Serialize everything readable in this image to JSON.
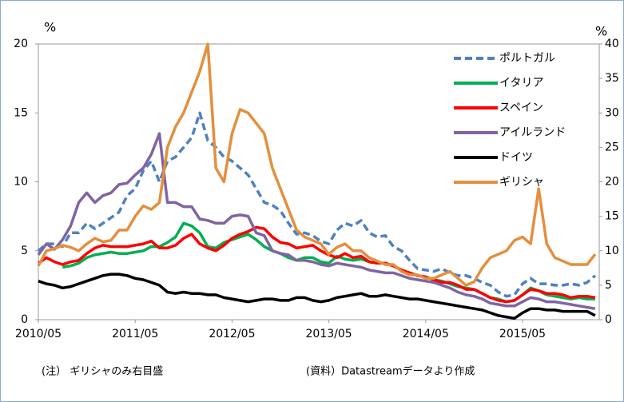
{
  "chart_data": {
    "type": "line",
    "y_label": "%",
    "y2_label": "%",
    "categories": [
      "2010/05",
      null,
      null,
      null,
      null,
      null,
      null,
      null,
      null,
      null,
      null,
      null,
      "2011/05",
      null,
      null,
      null,
      null,
      null,
      null,
      null,
      null,
      null,
      null,
      null,
      "2012/05",
      null,
      null,
      null,
      null,
      null,
      null,
      null,
      null,
      null,
      null,
      null,
      "2013/05",
      null,
      null,
      null,
      null,
      null,
      null,
      null,
      null,
      null,
      null,
      null,
      "2014/05",
      null,
      null,
      null,
      null,
      null,
      null,
      null,
      null,
      null,
      null,
      null,
      "2015/05",
      null,
      null,
      null,
      null,
      null,
      null,
      null,
      null,
      null
    ],
    "ylim": [
      0,
      20
    ],
    "yticks": [
      0,
      5,
      10,
      15,
      20
    ],
    "y2lim": [
      0,
      40
    ],
    "y2ticks": [
      0,
      5,
      10,
      15,
      20,
      25,
      30,
      35,
      40
    ],
    "grid": false,
    "legend": "upper right",
    "series": [
      {
        "name": "ポルトガル",
        "color": "#4f81bd",
        "dash": true,
        "values": [
          5.0,
          5.5,
          5.5,
          5.3,
          6.3,
          6.3,
          7.0,
          6.6,
          7.0,
          7.4,
          7.8,
          9.0,
          9.5,
          10.8,
          11.5,
          10.0,
          11.5,
          11.8,
          12.5,
          13.2,
          15.0,
          13.0,
          12.5,
          11.8,
          11.5,
          11.0,
          10.5,
          9.5,
          8.5,
          8.3,
          7.9,
          7.0,
          6.2,
          6.3,
          6.1,
          5.7,
          5.5,
          6.5,
          7.0,
          6.8,
          7.2,
          6.3,
          6.0,
          6.1,
          5.3,
          5.0,
          4.3,
          3.7,
          3.6,
          3.5,
          3.7,
          3.4,
          3.2,
          3.2,
          3.0,
          2.7,
          2.5,
          2.0,
          1.7,
          1.8,
          2.6,
          3.0,
          2.6,
          2.6,
          2.5,
          2.5,
          2.6,
          2.5,
          2.7,
          3.2
        ]
      },
      {
        "name": "イタリア",
        "color": "#00b050",
        "values": [
          null,
          null,
          null,
          3.8,
          3.9,
          4.1,
          4.5,
          4.7,
          4.8,
          4.9,
          4.8,
          4.8,
          4.9,
          5.0,
          5.3,
          5.3,
          5.6,
          6.0,
          7.0,
          6.8,
          6.3,
          5.3,
          5.2,
          5.6,
          5.8,
          6.0,
          6.2,
          5.8,
          5.3,
          5.0,
          4.8,
          4.5,
          4.3,
          4.5,
          4.5,
          4.2,
          4.1,
          4.6,
          4.4,
          4.3,
          4.4,
          4.2,
          4.1,
          4.1,
          3.9,
          3.6,
          3.4,
          3.2,
          3.1,
          2.9,
          2.8,
          2.6,
          2.4,
          2.3,
          2.2,
          1.9,
          1.6,
          1.5,
          1.3,
          1.4,
          1.8,
          2.3,
          2.1,
          1.8,
          1.7,
          1.6,
          1.5,
          1.6,
          1.5,
          1.5
        ]
      },
      {
        "name": "スペイン",
        "color": "#ff0000",
        "values": [
          4.1,
          4.5,
          4.2,
          4.0,
          4.2,
          4.3,
          4.8,
          5.2,
          5.4,
          5.3,
          5.3,
          5.3,
          5.4,
          5.5,
          5.7,
          5.2,
          5.2,
          5.4,
          5.9,
          6.2,
          5.5,
          5.2,
          5.0,
          5.4,
          5.9,
          6.2,
          6.4,
          6.7,
          6.6,
          6.0,
          5.6,
          5.5,
          5.2,
          5.3,
          5.4,
          5.0,
          4.7,
          4.5,
          4.8,
          4.5,
          4.6,
          4.2,
          4.1,
          4.1,
          3.9,
          3.6,
          3.4,
          3.2,
          3.1,
          2.9,
          2.7,
          2.7,
          2.5,
          2.2,
          2.2,
          1.9,
          1.6,
          1.4,
          1.3,
          1.4,
          1.8,
          2.2,
          2.1,
          1.9,
          1.9,
          1.8,
          1.6,
          1.7,
          1.7,
          1.6
        ]
      },
      {
        "name": "アイルランド",
        "color": "#8064a2",
        "values": [
          4.7,
          5.5,
          5.1,
          5.8,
          6.8,
          8.5,
          9.2,
          8.5,
          9.0,
          9.2,
          9.8,
          9.9,
          10.5,
          11.0,
          12.0,
          13.5,
          8.5,
          8.5,
          8.2,
          8.2,
          7.3,
          7.2,
          7.0,
          7.0,
          7.5,
          7.6,
          7.5,
          6.3,
          6.1,
          5.0,
          4.8,
          4.7,
          4.3,
          4.3,
          4.2,
          4.0,
          3.9,
          4.1,
          4.0,
          3.9,
          3.8,
          3.6,
          3.5,
          3.4,
          3.4,
          3.2,
          3.0,
          2.9,
          2.8,
          2.7,
          2.5,
          2.3,
          2.0,
          1.8,
          1.7,
          1.5,
          1.2,
          1.1,
          1.0,
          1.0,
          1.3,
          1.6,
          1.5,
          1.3,
          1.3,
          1.2,
          1.1,
          1.0,
          0.9,
          0.8
        ]
      },
      {
        "name": "ドイツ",
        "color": "#000000",
        "values": [
          2.8,
          2.6,
          2.5,
          2.3,
          2.4,
          2.6,
          2.8,
          3.0,
          3.2,
          3.3,
          3.3,
          3.2,
          3.0,
          2.9,
          2.7,
          2.5,
          2.0,
          1.9,
          2.0,
          1.9,
          1.9,
          1.8,
          1.8,
          1.6,
          1.5,
          1.4,
          1.3,
          1.4,
          1.5,
          1.5,
          1.4,
          1.4,
          1.6,
          1.6,
          1.4,
          1.3,
          1.4,
          1.6,
          1.7,
          1.8,
          1.9,
          1.7,
          1.7,
          1.8,
          1.7,
          1.6,
          1.5,
          1.5,
          1.4,
          1.3,
          1.2,
          1.1,
          1.0,
          0.9,
          0.8,
          0.7,
          0.5,
          0.3,
          0.2,
          0.1,
          0.5,
          0.8,
          0.8,
          0.7,
          0.7,
          0.6,
          0.6,
          0.6,
          0.6,
          0.3
        ]
      },
      {
        "name": "ギリシャ",
        "color": "#e38f3e",
        "axis": "y2",
        "values": [
          7.8,
          10.0,
          10.3,
          10.8,
          10.5,
          10.0,
          11.0,
          11.8,
          11.3,
          11.5,
          13.0,
          13.0,
          15.0,
          16.5,
          16.0,
          17.0,
          25.0,
          28.0,
          30.0,
          33.0,
          36.0,
          40.0,
          22.0,
          20.0,
          27.0,
          30.5,
          30.0,
          28.5,
          27.0,
          22.0,
          19.0,
          16.0,
          13.0,
          12.0,
          11.5,
          11.0,
          9.5,
          10.5,
          11.0,
          10.0,
          10.0,
          9.0,
          8.5,
          8.0,
          8.0,
          7.0,
          6.5,
          6.5,
          6.0,
          6.0,
          6.5,
          7.0,
          6.0,
          5.0,
          5.5,
          7.5,
          9.0,
          9.5,
          10.0,
          11.5,
          12.0,
          11.0,
          19.0,
          11.0,
          9.0,
          8.5,
          8.0,
          8.0,
          8.0,
          9.5
        ]
      }
    ]
  },
  "notes": {
    "left": "(注） ギリシャのみ右目盛",
    "right": "(資料）Datastreamデータより作成"
  }
}
